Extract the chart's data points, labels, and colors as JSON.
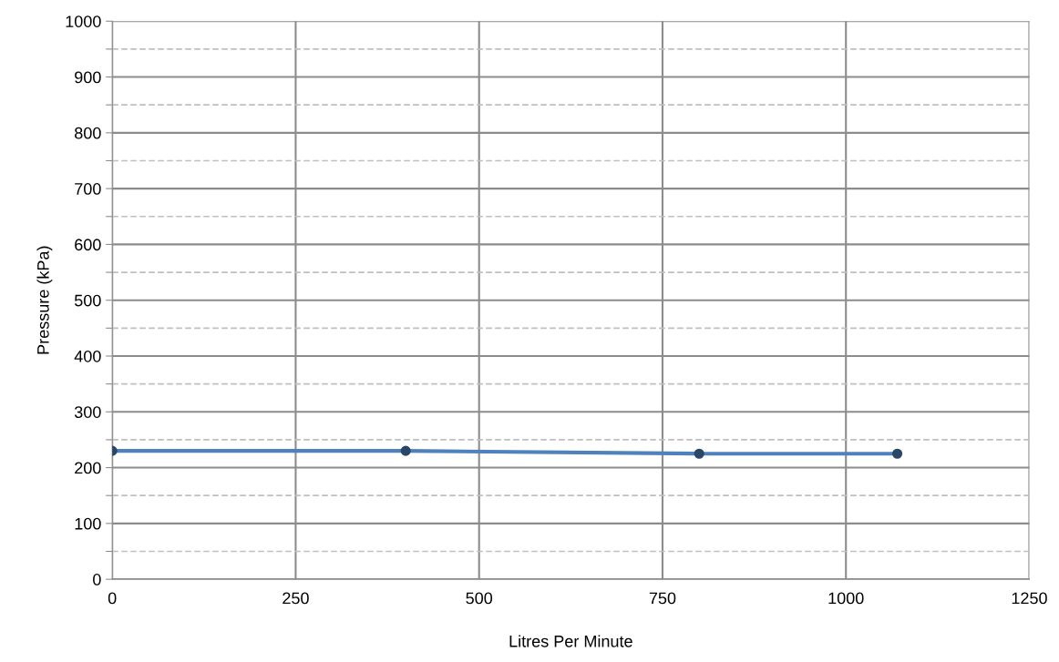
{
  "chart_data": {
    "type": "line",
    "xlabel": "Litres Per Minute",
    "ylabel": "Pressure (kPa)",
    "x": [
      0,
      400,
      800,
      1070
    ],
    "series": [
      {
        "color": "#4f81bd",
        "values": [
          230,
          230,
          225,
          225
        ]
      }
    ],
    "xlim": [
      0,
      1250
    ],
    "ylim": [
      0,
      1000
    ],
    "xticks": [
      0,
      250,
      500,
      750,
      1000,
      1250
    ],
    "yticks": [
      0,
      {
        "value": 50,
        "label": null
      },
      100,
      {
        "value": 150,
        "label": null
      },
      200,
      {
        "value": 250,
        "label": null
      },
      300,
      {
        "value": 350,
        "label": null
      },
      400,
      {
        "value": 450,
        "label": null
      },
      500,
      {
        "value": 550,
        "label": null
      },
      600,
      {
        "value": 650,
        "label": null
      },
      700,
      {
        "value": 750,
        "label": null
      },
      800,
      {
        "value": 850,
        "label": null
      },
      900,
      {
        "value": 950,
        "label": null
      },
      1000
    ],
    "grid": true,
    "marker": "circle",
    "line_style": "solid",
    "legend": false
  }
}
